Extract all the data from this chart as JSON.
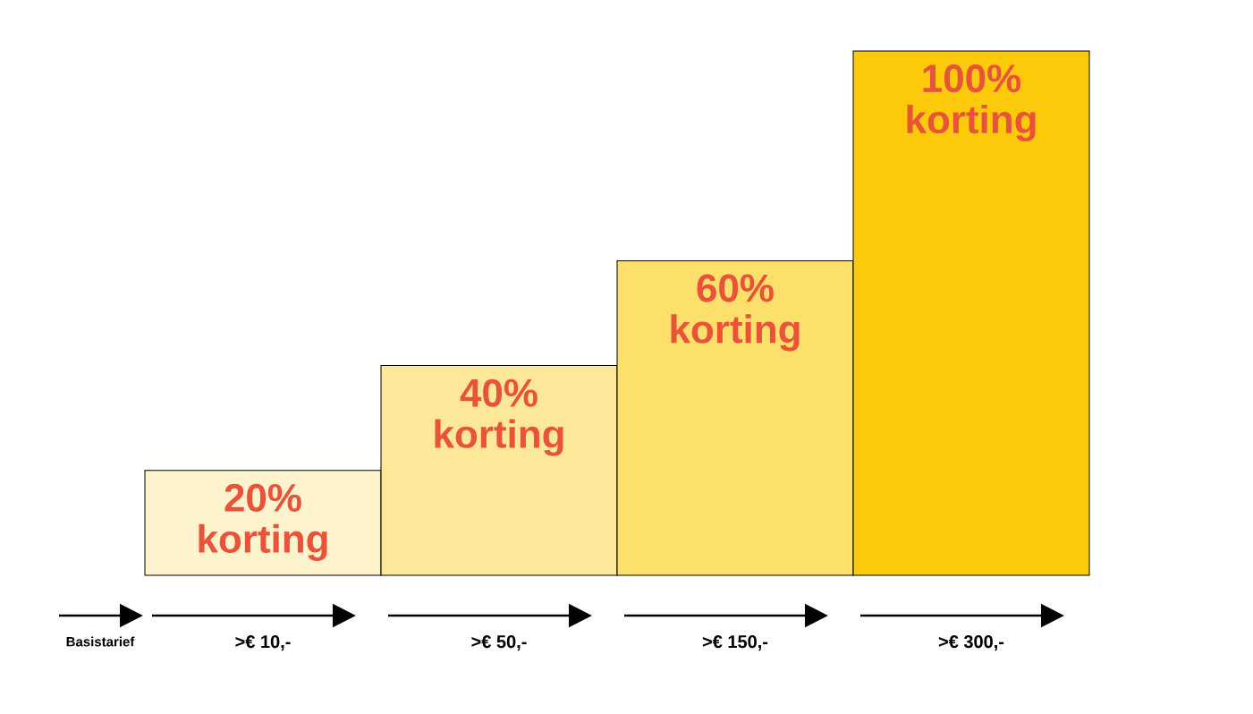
{
  "chart_data": {
    "type": "bar",
    "categories": [
      ">€ 10,-",
      ">€ 50,-",
      ">€ 150,-",
      ">€ 300,-"
    ],
    "values": [
      20,
      40,
      60,
      100
    ],
    "colors": [
      "#fdf3cc",
      "#fde89a",
      "#fddf6b",
      "#fdca0b"
    ],
    "value_labels": [
      "20% korting",
      "40% korting",
      "60% korting",
      "100% korting"
    ],
    "annotations": [
      "Basistarief"
    ]
  }
}
